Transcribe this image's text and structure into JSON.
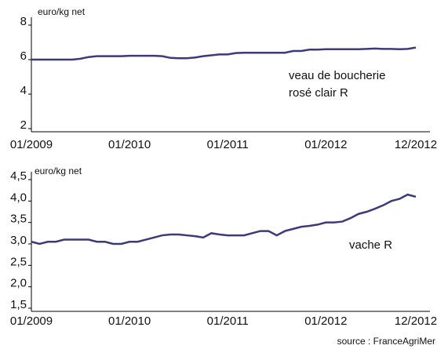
{
  "chart_data": [
    {
      "type": "line",
      "y_label": "euro/kg net",
      "annotation": [
        "veau de boucherie",
        "rosé clair R"
      ],
      "categories": [
        "01/2009",
        null,
        null,
        null,
        null,
        null,
        null,
        null,
        null,
        null,
        null,
        null,
        "01/2010",
        null,
        null,
        null,
        null,
        null,
        null,
        null,
        null,
        null,
        null,
        null,
        "01/2011",
        null,
        null,
        null,
        null,
        null,
        null,
        null,
        null,
        null,
        null,
        null,
        "01/2012",
        null,
        null,
        null,
        null,
        null,
        null,
        null,
        null,
        null,
        null,
        "12/2012"
      ],
      "series": [
        {
          "color": "#3d3a7a",
          "values": [
            6.0,
            6.0,
            6.0,
            6.0,
            6.0,
            6.0,
            6.05,
            6.15,
            6.2,
            6.2,
            6.2,
            6.2,
            6.22,
            6.22,
            6.22,
            6.22,
            6.2,
            6.1,
            6.08,
            6.08,
            6.12,
            6.2,
            6.25,
            6.3,
            6.3,
            6.38,
            6.4,
            6.4,
            6.4,
            6.4,
            6.4,
            6.4,
            6.5,
            6.5,
            6.58,
            6.58,
            6.6,
            6.6,
            6.6,
            6.6,
            6.6,
            6.62,
            6.64,
            6.62,
            6.62,
            6.6,
            6.62,
            6.7
          ]
        }
      ],
      "ylim": [
        2,
        8
      ],
      "yticks": [
        2,
        4,
        6,
        8
      ]
    },
    {
      "type": "line",
      "y_label": "euro/kg net",
      "annotation": [
        "vache R"
      ],
      "categories": [
        "01/2009",
        null,
        null,
        null,
        null,
        null,
        null,
        null,
        null,
        null,
        null,
        null,
        "01/2010",
        null,
        null,
        null,
        null,
        null,
        null,
        null,
        null,
        null,
        null,
        null,
        "01/2011",
        null,
        null,
        null,
        null,
        null,
        null,
        null,
        null,
        null,
        null,
        null,
        "01/2012",
        null,
        null,
        null,
        null,
        null,
        null,
        null,
        null,
        null,
        null,
        "12/2012"
      ],
      "series": [
        {
          "color": "#3d3a7a",
          "values": [
            3.05,
            3.0,
            3.05,
            3.05,
            3.1,
            3.1,
            3.1,
            3.1,
            3.05,
            3.05,
            3.0,
            3.0,
            3.05,
            3.05,
            3.1,
            3.15,
            3.2,
            3.22,
            3.22,
            3.2,
            3.18,
            3.15,
            3.25,
            3.22,
            3.2,
            3.2,
            3.2,
            3.25,
            3.3,
            3.3,
            3.2,
            3.3,
            3.35,
            3.4,
            3.42,
            3.45,
            3.5,
            3.5,
            3.52,
            3.6,
            3.7,
            3.75,
            3.82,
            3.9,
            4.0,
            4.05,
            4.15,
            4.1
          ]
        }
      ],
      "ylim": [
        1.5,
        4.5
      ],
      "yticks": [
        {
          "value": 1.5,
          "label": "1,5"
        },
        {
          "value": 2,
          "label": "2,0"
        },
        {
          "value": 2.5,
          "label": "2,5"
        },
        {
          "value": 3,
          "label": "3,0"
        },
        {
          "value": 3.5,
          "label": "3,5"
        },
        {
          "value": 4,
          "label": "4,0"
        },
        {
          "value": 4.5,
          "label": "4,5"
        }
      ]
    }
  ],
  "source": "source : FranceAgriMer"
}
